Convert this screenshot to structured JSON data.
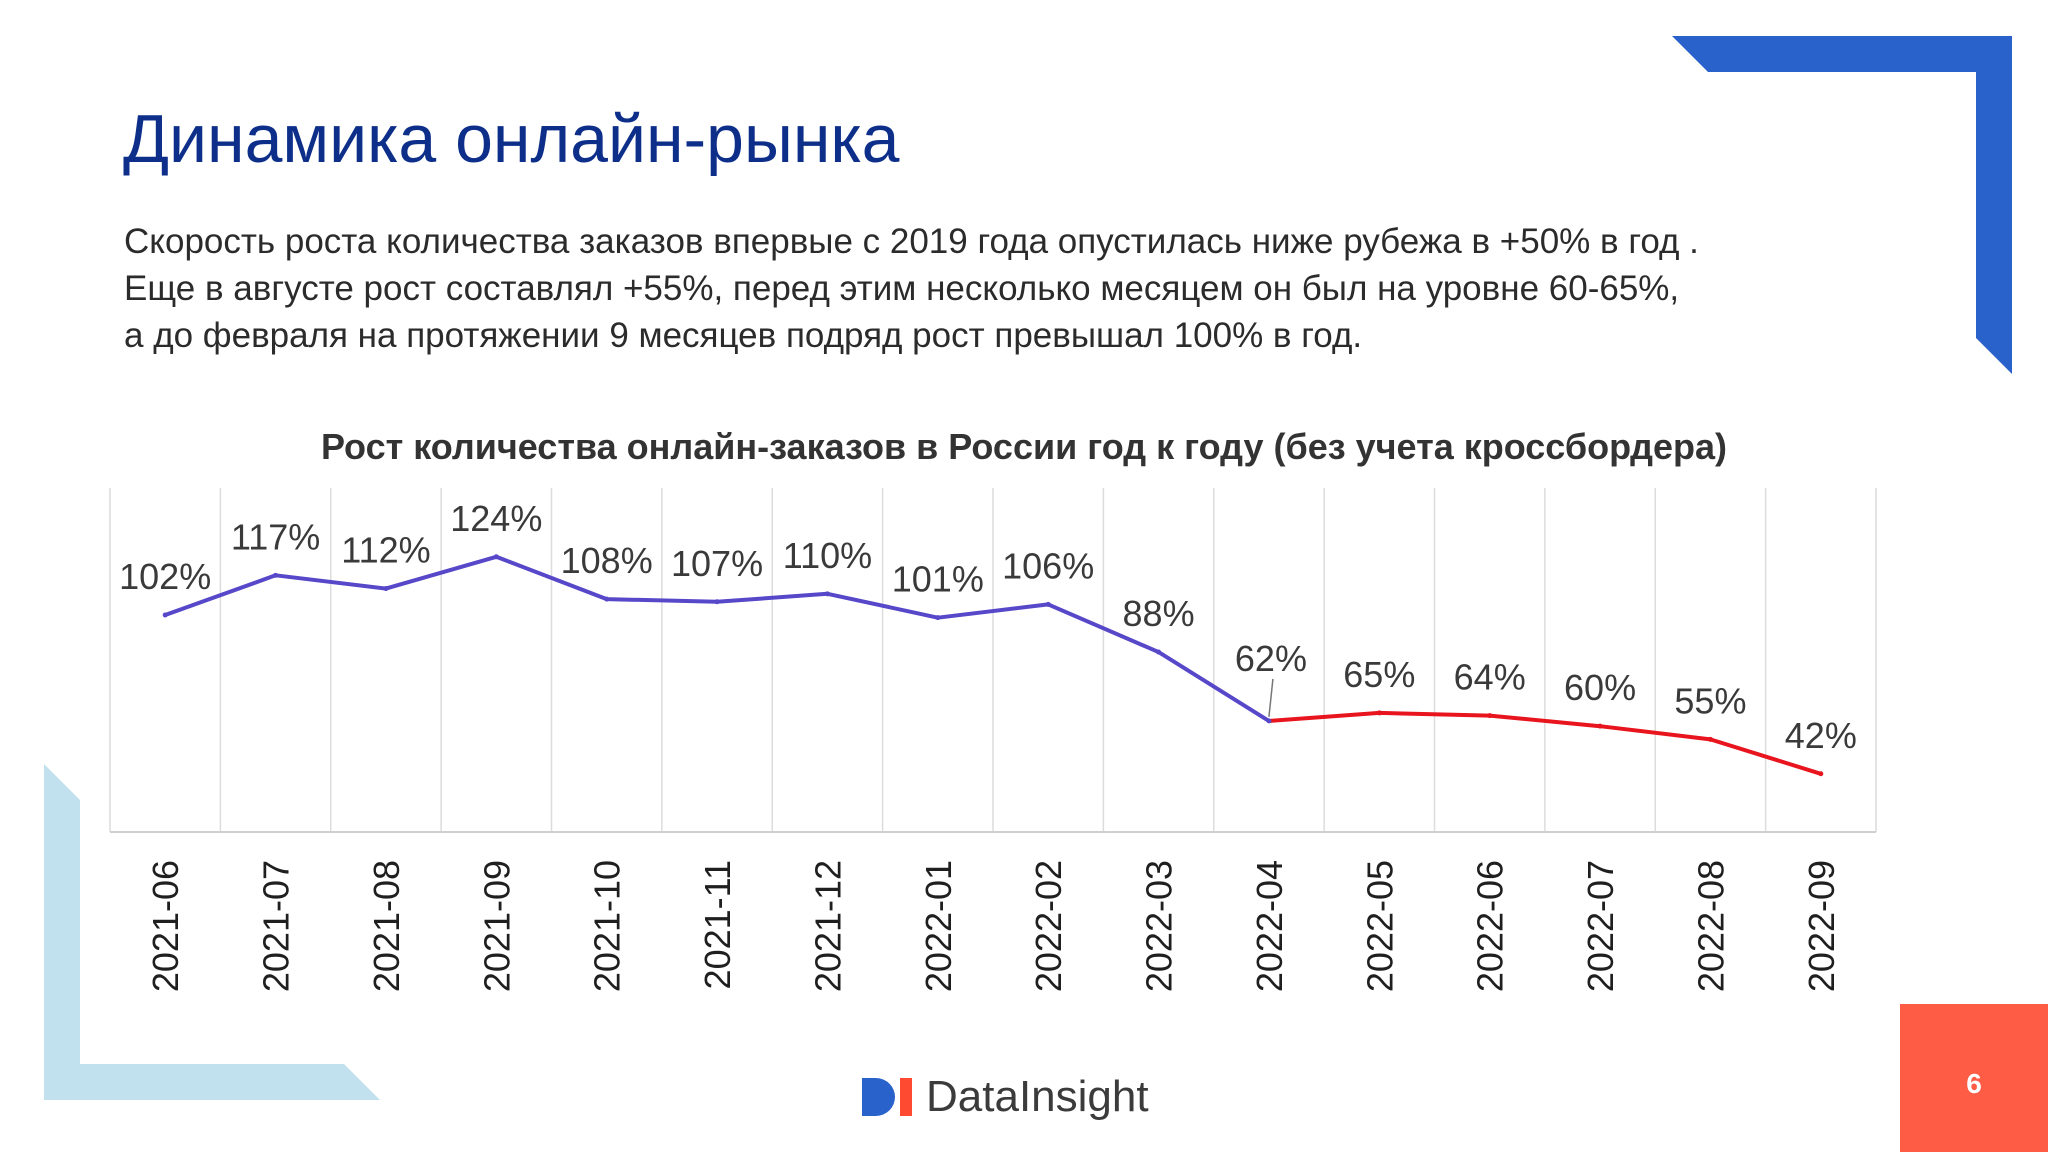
{
  "slide": {
    "title": "Динамика онлайн-рынка",
    "body_lines": [
      "Скорость роста количества заказов впервые с 2019 года опустилась ниже рубежа в +50% в год .",
      "Еще в августе рост составлял +55%, перед этим несколько месяцем он был на уровне 60-65%,",
      "а до февраля на протяжении 9 месяцев подряд рост превышал 100% в год."
    ],
    "page_number": "6"
  },
  "brand": {
    "logo_text": "DataInsight"
  },
  "colors": {
    "title": "#0d2f8a",
    "series_before": "#5747c9",
    "series_after": "#e8141e",
    "accent_blue": "#2a62cc",
    "accent_light": "#c2e1ef",
    "page_box": "#ff5c46"
  },
  "chart_data": {
    "type": "line",
    "title": "Рост количества онлайн-заказов в России год к году (без учета кроссбордера)",
    "categories": [
      "2021-06",
      "2021-07",
      "2021-08",
      "2021-09",
      "2021-10",
      "2021-11",
      "2021-12",
      "2022-01",
      "2022-02",
      "2022-03",
      "2022-04",
      "2022-05",
      "2022-06",
      "2022-07",
      "2022-08",
      "2022-09"
    ],
    "values": [
      102,
      117,
      112,
      124,
      108,
      107,
      110,
      101,
      106,
      88,
      62,
      65,
      64,
      60,
      55,
      42
    ],
    "labels": [
      "102%",
      "117%",
      "112%",
      "124%",
      "108%",
      "107%",
      "110%",
      "101%",
      "106%",
      "88%",
      "62%",
      "65%",
      "64%",
      "60%",
      "55%",
      "42%"
    ],
    "color_change_index": 10,
    "grid": "vertical",
    "legend": "none"
  }
}
